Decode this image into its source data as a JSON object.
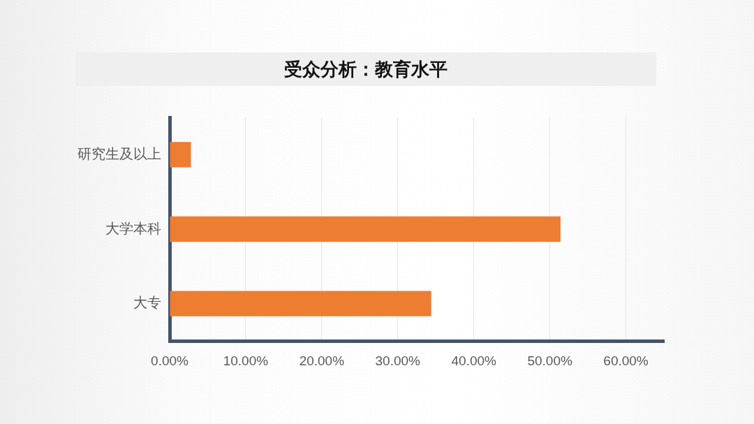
{
  "chart_data": {
    "type": "bar",
    "orientation": "horizontal",
    "title": "受众分析：教育水平",
    "categories": [
      "研究生及以上",
      "大学本科",
      "大专"
    ],
    "values": [
      2.8,
      51.4,
      34.4
    ],
    "color": "#ed7d31",
    "xlim": [
      0,
      65
    ],
    "xticks": [
      {
        "value": 0,
        "label": "0.00%"
      },
      {
        "value": 10,
        "label": "10.00%"
      },
      {
        "value": 20,
        "label": "20.00%"
      },
      {
        "value": 30,
        "label": "30.00%"
      },
      {
        "value": 40,
        "label": "40.00%"
      },
      {
        "value": 50,
        "label": "50.00%"
      },
      {
        "value": 60,
        "label": "60.00%"
      }
    ],
    "grid": "x"
  }
}
